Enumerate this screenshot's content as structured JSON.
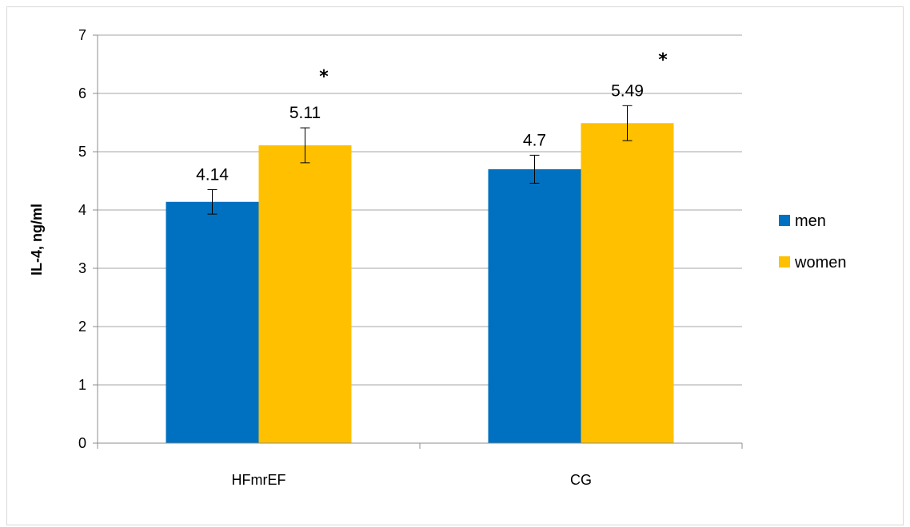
{
  "chart_data": {
    "type": "bar",
    "title": "",
    "xlabel": "",
    "ylabel": "IL-4, ng/ml",
    "categories": [
      "HFmrEF",
      "CG"
    ],
    "series": [
      {
        "name": "men",
        "color": "#0070C0",
        "values": [
          4.14,
          4.7
        ],
        "error": [
          0.21,
          0.24
        ]
      },
      {
        "name": "women",
        "color": "#FFC000",
        "values": [
          5.11,
          5.49
        ],
        "error": [
          0.3,
          0.3
        ]
      }
    ],
    "data_labels": [
      "4.14",
      "5.11",
      "4.7",
      "5.49"
    ],
    "significance_markers": [
      "*",
      "*"
    ],
    "ylim": [
      0,
      7
    ],
    "yticks": [
      "0",
      "1",
      "2",
      "3",
      "4",
      "5",
      "6",
      "7"
    ],
    "grid": "horizontal",
    "legend_position": "right"
  }
}
